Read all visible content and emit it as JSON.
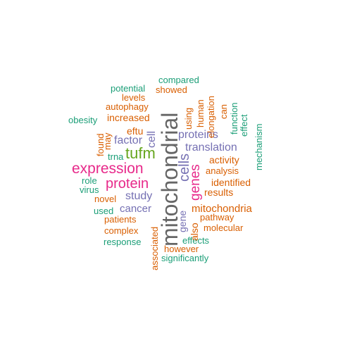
{
  "palette": {
    "teal": "#1b9e77",
    "orange": "#d95f02",
    "purple": "#7570b3",
    "pink": "#e7298a",
    "green": "#66a61e",
    "gray": "#666666"
  },
  "words": {
    "mitochondrial": "mitochondrial",
    "expression": "expression",
    "tufm": "tufm",
    "protein": "protein",
    "cells": "cells",
    "genes": "genes",
    "translation": "translation",
    "proteins": "proteins",
    "factor": "factor",
    "cell": "cell",
    "study": "study",
    "cancer": "cancer",
    "mitochondria": "mitochondria",
    "results": "results",
    "identified": "identified",
    "activity": "activity",
    "analysis": "analysis",
    "pathway": "pathway",
    "molecular": "molecular",
    "gene": "gene",
    "also": "also",
    "eftu": "eftu",
    "increased": "increased",
    "autophagy": "autophagy",
    "levels": "levels",
    "potential": "potential",
    "compared": "compared",
    "showed": "showed",
    "obesity": "obesity",
    "found": "found",
    "may": "may",
    "trna": "trna",
    "role": "role",
    "virus": "virus",
    "novel": "novel",
    "used": "used",
    "patients": "patients",
    "complex": "complex",
    "response": "response",
    "associated": "associated",
    "effects": "effects",
    "however": "however",
    "significantly": "significantly",
    "using": "using",
    "human": "human",
    "elongation": "elongation",
    "can": "can",
    "function": "function",
    "effect": "effect",
    "mechanism": "mechanism"
  }
}
